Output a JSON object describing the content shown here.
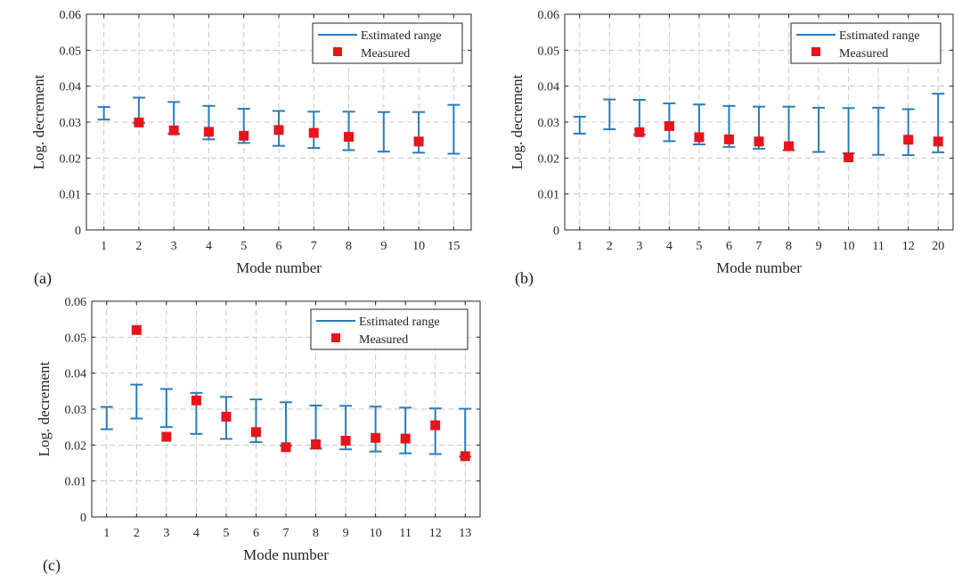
{
  "colors": {
    "range": "#2b7bb9",
    "measured": "#e8141b",
    "axis": "#262626",
    "grid": "#c8c8c8"
  },
  "legend": {
    "range_label": "Estimated range",
    "measured_label": "Measured"
  },
  "chart_data": [
    {
      "type": "scatter",
      "panel": "(a)",
      "xlabel": "Mode number",
      "ylabel": "Log. decrement",
      "ylim": [
        0,
        0.06
      ],
      "yticks": [
        "0",
        "0.01",
        "0.02",
        "0.03",
        "0.04",
        "0.05",
        "0.06"
      ],
      "categories": [
        "1",
        "2",
        "3",
        "4",
        "5",
        "6",
        "7",
        "8",
        "9",
        "10",
        "15"
      ],
      "range_low": [
        0.0307,
        0.0298,
        0.0268,
        0.0252,
        0.0242,
        0.0234,
        0.0228,
        0.0222,
        0.0218,
        0.0215,
        0.0212
      ],
      "range_high": [
        0.0342,
        0.0368,
        0.0356,
        0.0345,
        0.0337,
        0.0331,
        0.0329,
        0.0329,
        0.0328,
        0.0328,
        0.0348
      ],
      "measured": [
        null,
        0.0299,
        0.0277,
        0.0273,
        0.0262,
        0.0278,
        0.027,
        0.0259,
        null,
        0.0246,
        null
      ],
      "legend_position": "top-right",
      "grid": true
    },
    {
      "type": "scatter",
      "panel": "(b)",
      "xlabel": "Mode number",
      "ylabel": "Log. decrement",
      "ylim": [
        0,
        0.06
      ],
      "yticks": [
        "0",
        "0.01",
        "0.02",
        "0.03",
        "0.04",
        "0.05",
        "0.06"
      ],
      "categories": [
        "1",
        "2",
        "3",
        "4",
        "5",
        "6",
        "7",
        "8",
        "9",
        "10",
        "11",
        "12",
        "20"
      ],
      "range_low": [
        0.0268,
        0.028,
        0.0265,
        0.0247,
        0.0238,
        0.0231,
        0.0226,
        0.0222,
        0.0217,
        0.0213,
        0.0209,
        0.0208,
        0.0216
      ],
      "range_high": [
        0.0315,
        0.0363,
        0.0362,
        0.0352,
        0.0349,
        0.0345,
        0.0343,
        0.0343,
        0.034,
        0.0339,
        0.034,
        0.0336,
        0.0379
      ],
      "measured": [
        null,
        null,
        0.0272,
        0.0289,
        0.0258,
        0.0252,
        0.0246,
        0.0233,
        null,
        0.0202,
        null,
        0.0251,
        0.0246
      ],
      "legend_position": "top-right",
      "grid": true
    },
    {
      "type": "scatter",
      "panel": "(c)",
      "xlabel": "Mode number",
      "ylabel": "Log. decrement",
      "ylim": [
        0,
        0.06
      ],
      "yticks": [
        "0",
        "0.01",
        "0.02",
        "0.03",
        "0.04",
        "0.05",
        "0.06"
      ],
      "categories": [
        "1",
        "2",
        "3",
        "4",
        "5",
        "6",
        "7",
        "8",
        "9",
        "10",
        "11",
        "12",
        "13"
      ],
      "range_low": [
        0.0244,
        0.0274,
        0.025,
        0.0231,
        0.0217,
        0.0208,
        0.0198,
        0.019,
        0.0188,
        0.0182,
        0.0177,
        0.0175,
        0.0168
      ],
      "range_high": [
        0.0306,
        0.0368,
        0.0356,
        0.0345,
        0.0334,
        0.0327,
        0.0319,
        0.031,
        0.0309,
        0.0307,
        0.0304,
        0.0302,
        0.0301
      ],
      "measured": [
        null,
        0.052,
        0.0223,
        0.0324,
        0.0279,
        0.0236,
        0.0194,
        0.0202,
        0.0212,
        0.022,
        0.0218,
        0.0255,
        0.0169
      ],
      "legend_position": "top-right",
      "grid": true
    }
  ]
}
